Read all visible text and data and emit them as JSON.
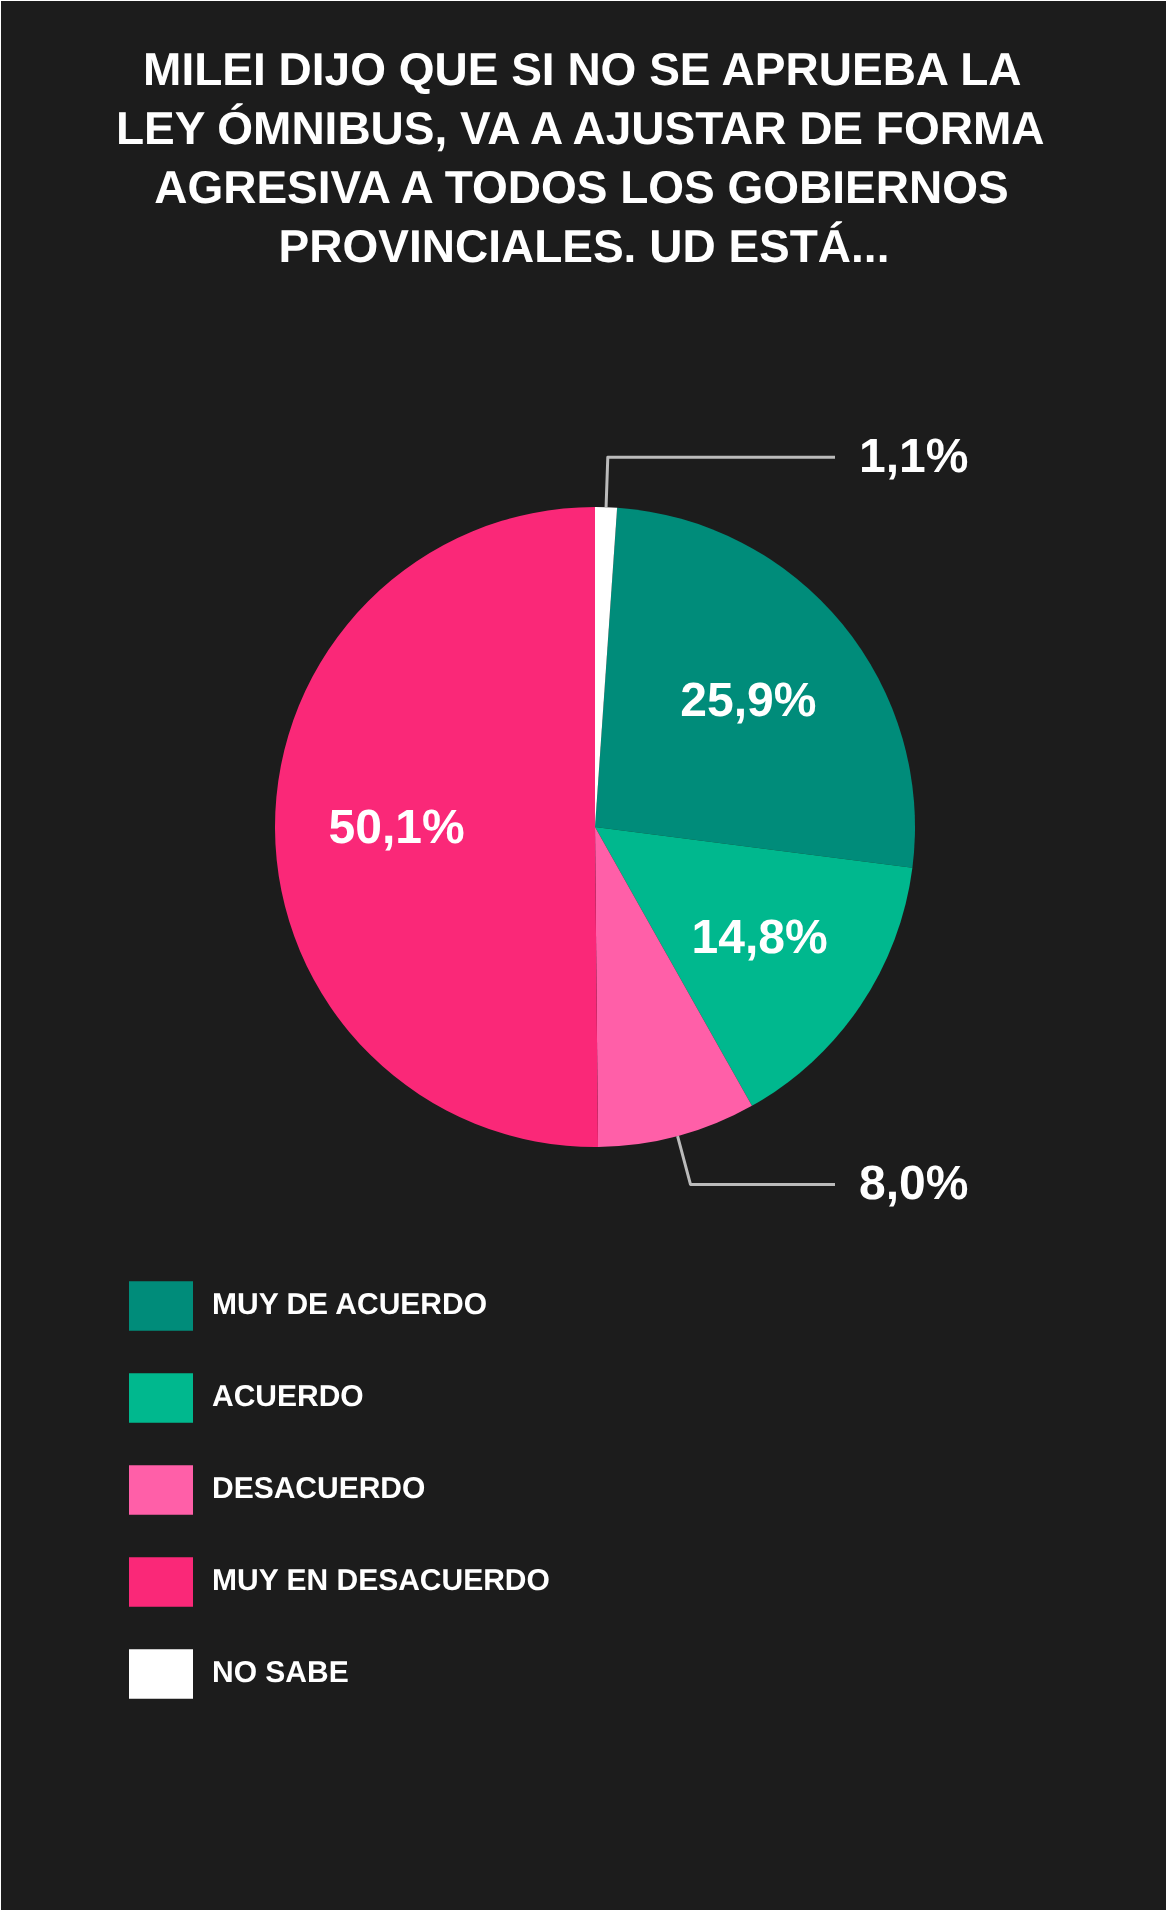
{
  "chart_data": {
    "type": "pie",
    "title": "MILEI DIJO QUE SI NO SE APRUEBA LA LEY ÓMNIBUS, VA A AJUSTAR DE FORMA AGRESIVA A TODOS LOS GOBIERNOS PROVINCIALES. UD ESTÁ...",
    "categories": [
      "MUY DE ACUERDO",
      "ACUERDO",
      "DESACUERDO",
      "MUY EN DESACUERDO",
      "NO SABE"
    ],
    "values": [
      25.9,
      14.8,
      8.0,
      50.1,
      1.1
    ],
    "colors": [
      "#008c7a",
      "#00b88e",
      "#ff5fa8",
      "#fa2878",
      "#ffffff"
    ],
    "value_labels": [
      "25,9%",
      "14,8%",
      "8,0%",
      "50,1%",
      "1,1%"
    ],
    "legend": "bottom left"
  }
}
